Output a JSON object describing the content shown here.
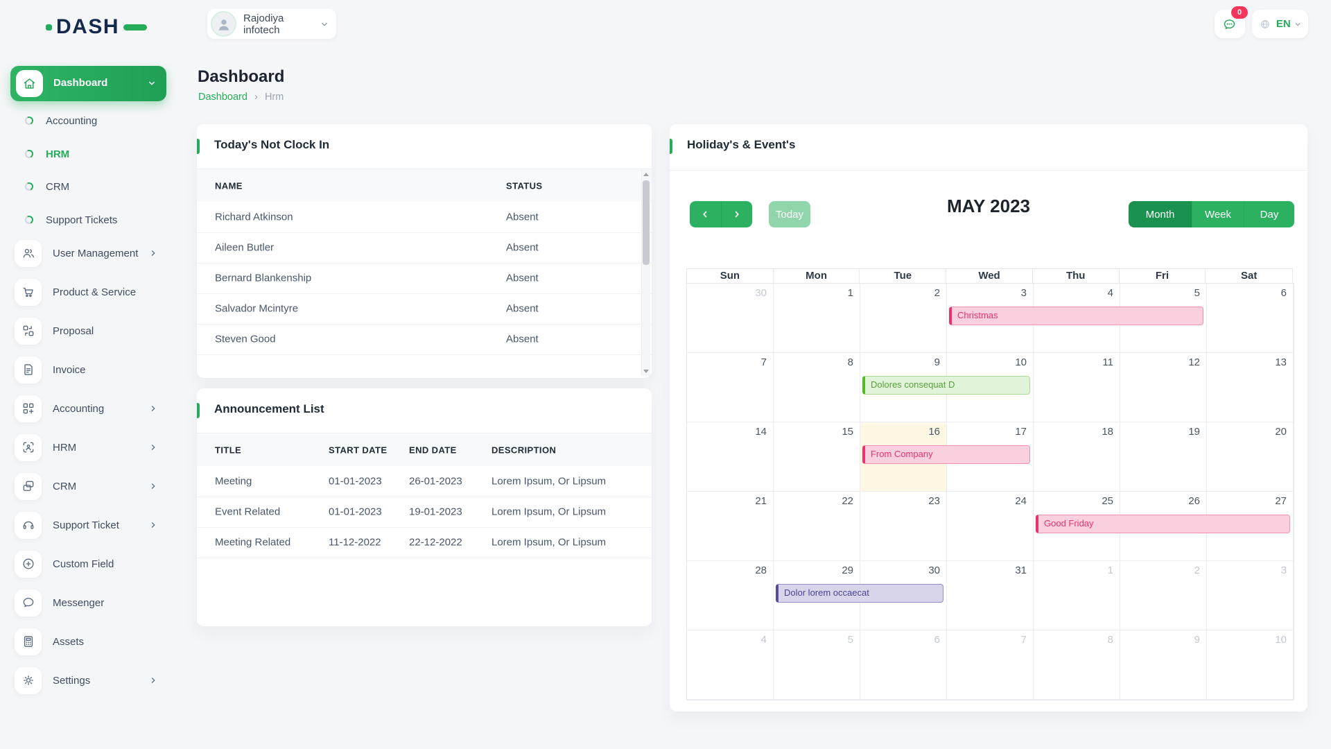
{
  "colors": {
    "primary": "#26ab5b",
    "primary_dark": "#1b9150",
    "primary_light": "#90d5ac",
    "badge_red": "#f5365c",
    "event_pink": "#e8336e",
    "event_green": "#51bb25",
    "event_purple": "#564aa3",
    "today_cell_bg": "#fcf8e3"
  },
  "header": {
    "logo_text": "DASH",
    "company": "Rajodiya infotech",
    "notification_count": "0",
    "language": "EN"
  },
  "page": {
    "title": "Dashboard",
    "breadcrumb_home": "Dashboard",
    "breadcrumb_current": "Hrm"
  },
  "sidebar": {
    "main_item": {
      "label": "Dashboard",
      "icon": "home-icon"
    },
    "sub_items": [
      {
        "label": "Accounting",
        "active": false
      },
      {
        "label": "HRM",
        "active": true
      },
      {
        "label": "CRM",
        "active": false
      },
      {
        "label": "Support Tickets",
        "active": false
      }
    ],
    "items": [
      {
        "label": "User Management",
        "icon": "users-icon",
        "chevron": true
      },
      {
        "label": "Product & Service",
        "icon": "cart-icon",
        "chevron": false
      },
      {
        "label": "Proposal",
        "icon": "proposal-icon",
        "chevron": false
      },
      {
        "label": "Invoice",
        "icon": "invoice-icon",
        "chevron": false
      },
      {
        "label": "Accounting",
        "icon": "accounting-icon",
        "chevron": true
      },
      {
        "label": "HRM",
        "icon": "hrm-icon",
        "chevron": true
      },
      {
        "label": "CRM",
        "icon": "crm-icon",
        "chevron": true
      },
      {
        "label": "Support Ticket",
        "icon": "headset-icon",
        "chevron": true
      },
      {
        "label": "Custom Field",
        "icon": "plus-circle-icon",
        "chevron": false
      },
      {
        "label": "Messenger",
        "icon": "chat-icon",
        "chevron": false
      },
      {
        "label": "Assets",
        "icon": "calculator-icon",
        "chevron": false
      },
      {
        "label": "Settings",
        "icon": "gear-icon",
        "chevron": true
      }
    ]
  },
  "not_clock_in": {
    "title": "Today's Not Clock In",
    "columns": [
      "NAME",
      "STATUS"
    ],
    "rows": [
      {
        "name": "Richard Atkinson",
        "status": "Absent"
      },
      {
        "name": "Aileen Butler",
        "status": "Absent"
      },
      {
        "name": "Bernard Blankenship",
        "status": "Absent"
      },
      {
        "name": "Salvador Mcintyre",
        "status": "Absent"
      },
      {
        "name": "Steven Good",
        "status": "Absent"
      }
    ]
  },
  "announcements": {
    "title": "Announcement List",
    "columns": [
      "TITLE",
      "START DATE",
      "END DATE",
      "DESCRIPTION"
    ],
    "rows": [
      {
        "title": "Meeting",
        "start": "01-01-2023",
        "end": "26-01-2023",
        "description": "Lorem Ipsum, Or Lipsum"
      },
      {
        "title": "Event Related",
        "start": "01-01-2023",
        "end": "19-01-2023",
        "description": "Lorem Ipsum, Or Lipsum"
      },
      {
        "title": "Meeting Related",
        "start": "11-12-2022",
        "end": "22-12-2022",
        "description": "Lorem Ipsum, Or Lipsum"
      }
    ]
  },
  "calendar": {
    "title": "Holiday's & Event's",
    "toolbar": {
      "today_label": "Today",
      "month_title": "MAY 2023",
      "views": [
        "Month",
        "Week",
        "Day"
      ],
      "active_view": "Month"
    },
    "day_headers": [
      "Sun",
      "Mon",
      "Tue",
      "Wed",
      "Thu",
      "Fri",
      "Sat"
    ],
    "weeks": [
      [
        {
          "d": "30",
          "muted": true
        },
        {
          "d": "1"
        },
        {
          "d": "2"
        },
        {
          "d": "3"
        },
        {
          "d": "4"
        },
        {
          "d": "5"
        },
        {
          "d": "6"
        }
      ],
      [
        {
          "d": "7"
        },
        {
          "d": "8"
        },
        {
          "d": "9"
        },
        {
          "d": "10"
        },
        {
          "d": "11"
        },
        {
          "d": "12"
        },
        {
          "d": "13"
        }
      ],
      [
        {
          "d": "14"
        },
        {
          "d": "15"
        },
        {
          "d": "16"
        },
        {
          "d": "17"
        },
        {
          "d": "18"
        },
        {
          "d": "19"
        },
        {
          "d": "20"
        }
      ],
      [
        {
          "d": "21"
        },
        {
          "d": "22"
        },
        {
          "d": "23"
        },
        {
          "d": "24"
        },
        {
          "d": "25"
        },
        {
          "d": "26"
        },
        {
          "d": "27"
        }
      ],
      [
        {
          "d": "28"
        },
        {
          "d": "29"
        },
        {
          "d": "30"
        },
        {
          "d": "31"
        },
        {
          "d": "1",
          "muted": true
        },
        {
          "d": "2",
          "muted": true
        },
        {
          "d": "3",
          "muted": true
        }
      ],
      [
        {
          "d": "4",
          "muted": true
        },
        {
          "d": "5",
          "muted": true
        },
        {
          "d": "6",
          "muted": true
        },
        {
          "d": "7",
          "muted": true
        },
        {
          "d": "8",
          "muted": true
        },
        {
          "d": "9",
          "muted": true
        },
        {
          "d": "10",
          "muted": true
        }
      ]
    ],
    "today_cell": {
      "week": 2,
      "col": 2
    },
    "events": [
      {
        "label": "Christmas",
        "week": 0,
        "col": 3,
        "span": 3,
        "color": "pink"
      },
      {
        "label": "Dolores consequat D",
        "week": 1,
        "col": 2,
        "span": 2,
        "color": "green"
      },
      {
        "label": "From Company",
        "week": 2,
        "col": 2,
        "span": 2,
        "color": "pink"
      },
      {
        "label": "Good Friday",
        "week": 3,
        "col": 4,
        "span": 3,
        "color": "pink"
      },
      {
        "label": "Dolor lorem occaecat",
        "week": 4,
        "col": 1,
        "span": 2,
        "color": "purple"
      }
    ]
  }
}
